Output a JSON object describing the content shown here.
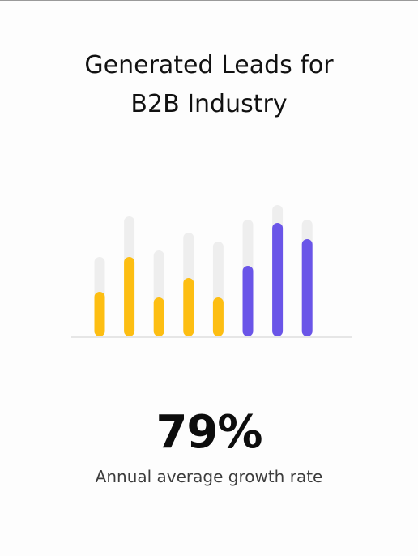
{
  "title_lines": [
    "Generated Leads for",
    "B2B Industry"
  ],
  "stat": {
    "value": "79%",
    "caption": "Annual average growth rate"
  },
  "colors": {
    "yellow": "#FDBE12",
    "purple": "#6A55E8",
    "track": "#EEEEEE",
    "baseline": "#E6E6E6"
  },
  "chart_data": {
    "type": "bar",
    "categories": [
      "",
      "",
      "",
      "",
      "",
      "",
      "",
      ""
    ],
    "series": [
      {
        "values": [
          98,
          148,
          106,
          128,
          117,
          144,
          162,
          144
        ],
        "role": "background-track"
      },
      {
        "values": [
          55,
          98,
          48,
          72,
          48,
          87,
          140,
          120
        ],
        "role": "value"
      }
    ],
    "bar_colors": [
      "yellow",
      "yellow",
      "yellow",
      "yellow",
      "yellow",
      "purple",
      "purple",
      "purple"
    ],
    "ylim": [
      0,
      165
    ],
    "grid": false,
    "legend": "none"
  }
}
